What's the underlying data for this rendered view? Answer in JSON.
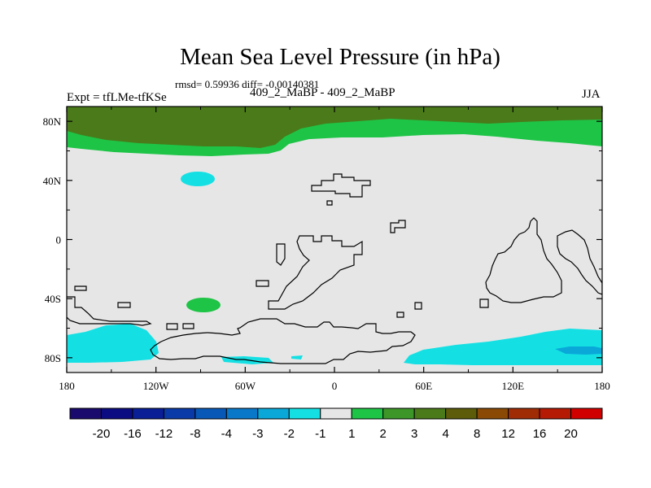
{
  "chart_data": {
    "type": "heatmap",
    "title": "Mean Sea Level Pressure (in hPa)",
    "stats": "rmsd= 0.59936 diff= -0.00140381",
    "experiment": "Expt = tfLMe-tfKSe",
    "case_label": "409_2_MaBP - 409_2_MaBP",
    "season": "JJA",
    "x_ticks": [
      "180",
      "120W",
      "60W",
      "0",
      "60E",
      "120E",
      "180"
    ],
    "x_tick_values": [
      -180,
      -120,
      -60,
      0,
      60,
      120,
      180
    ],
    "y_ticks": [
      "80N",
      "40N",
      "0",
      "40S",
      "80S"
    ],
    "y_tick_values": [
      80,
      40,
      0,
      -40,
      -80
    ],
    "xlim": [
      -180,
      180
    ],
    "ylim": [
      -90,
      90
    ],
    "colorbar": {
      "levels": [
        "-20",
        "-16",
        "-12",
        "-8",
        "-4",
        "-3",
        "-2",
        "-1",
        "1",
        "2",
        "3",
        "4",
        "8",
        "12",
        "16",
        "20"
      ],
      "colors": [
        "#1a0a6e",
        "#0c0c82",
        "#0a1e96",
        "#0a3aa8",
        "#0858b8",
        "#0a78c8",
        "#0aa8d8",
        "#14e0e4",
        "#e6e6e6",
        "#1ec446",
        "#3c9628",
        "#4a7a1a",
        "#5c5c0a",
        "#8a4a06",
        "#a02c06",
        "#b41a04",
        "#d00000"
      ]
    },
    "regions": [
      {
        "name": "arctic-high-3-4",
        "bin": "3 to 4",
        "color": "#4a7a1a"
      },
      {
        "name": "arctic-high-1-2",
        "bin": "1 to 2",
        "color": "#1ec446"
      },
      {
        "name": "north-atlantic-low",
        "bin": "-2 to -1",
        "color": "#14e0e4"
      },
      {
        "name": "south-atlantic-high",
        "bin": "1 to 2",
        "color": "#1ec446"
      },
      {
        "name": "southern-ocean-low-west",
        "bin": "-2 to -1",
        "color": "#14e0e4"
      },
      {
        "name": "southern-ocean-low-east",
        "bin": "-2 to -1",
        "color": "#14e0e4"
      },
      {
        "name": "southern-ocean-low-core",
        "bin": "-3 to -2",
        "color": "#0aa8d8"
      }
    ]
  }
}
